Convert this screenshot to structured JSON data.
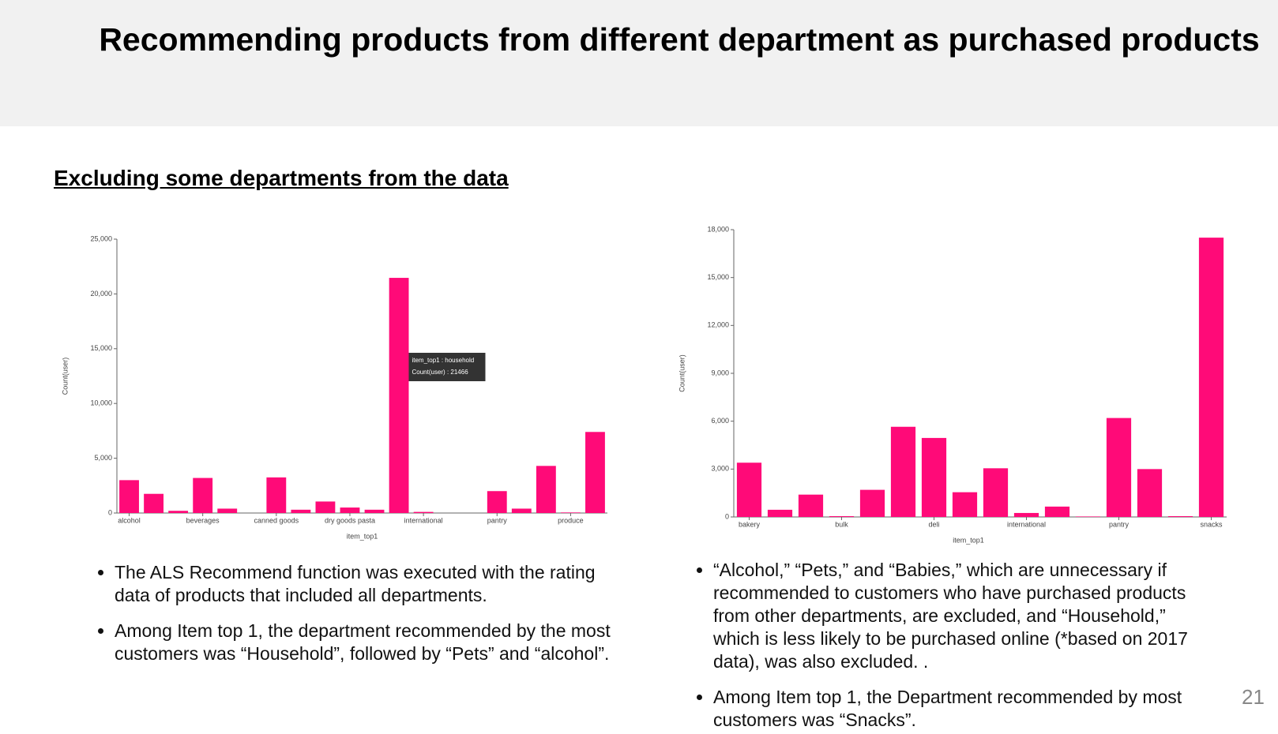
{
  "title": "Recommending products from different department as purchased products",
  "heading": "Excluding some departments from the data",
  "chart_data": [
    {
      "type": "bar",
      "color": "#ff0a78",
      "categories": [
        "alcohol",
        null,
        null,
        "beverages",
        null,
        null,
        "canned goods",
        null,
        null,
        "dry goods pasta",
        null,
        null,
        "international",
        null,
        null,
        "pantry",
        null,
        null,
        "produce",
        null
      ],
      "values": [
        3000,
        1750,
        200,
        3200,
        400,
        0,
        3250,
        300,
        1050,
        500,
        300,
        21466,
        100,
        0,
        0,
        2000,
        400,
        4300,
        50,
        7400
      ],
      "ylim": [
        0,
        25000
      ],
      "yticks": [
        0,
        {
          "value": 5000,
          "label": "5,000"
        },
        {
          "value": 10000,
          "label": "10,000"
        },
        {
          "value": 15000,
          "label": "15,000"
        },
        {
          "value": 20000,
          "label": "20,000"
        },
        {
          "value": 25000,
          "label": "25,000"
        }
      ],
      "x_label": "item_top1",
      "y_label": "Count(user)",
      "tooltip": [
        "item_top1 : household",
        "Count(user) : 21466"
      ]
    },
    {
      "type": "bar",
      "color": "#ff0a78",
      "categories": [
        "bakery",
        null,
        null,
        "bulk",
        null,
        null,
        "deli",
        null,
        null,
        "international",
        null,
        null,
        "pantry",
        null,
        null,
        "snacks"
      ],
      "values": [
        3400,
        450,
        1400,
        50,
        1700,
        5650,
        4950,
        1550,
        3050,
        250,
        650,
        30,
        6200,
        3000,
        50,
        17500
      ],
      "ylim": [
        0,
        18000
      ],
      "yticks": [
        0,
        {
          "value": 3000,
          "label": "3,000"
        },
        {
          "value": 6000,
          "label": "6,000"
        },
        {
          "value": 9000,
          "label": "9,000"
        },
        {
          "value": 12000,
          "label": "12,000"
        },
        {
          "value": 15000,
          "label": "15,000"
        },
        {
          "value": 18000,
          "label": "18,000"
        }
      ],
      "x_label": "item_top1",
      "y_label": "Count(user)"
    }
  ],
  "left_bullets": [
    "The ALS Recommend function was executed with the rating data of products that included all departments.",
    "Among Item top 1, the department recommended by the most customers was “Household”, followed by “Pets” and “alcohol”."
  ],
  "right_bullets": [
    "“Alcohol,” “Pets,” and “Babies,” which are unnecessary if recommended to customers who have purchased products from other departments, are excluded, and “Household,” which is less likely to be purchased online (*based on 2017 data), was also excluded. .",
    "Among Item top 1, the Department recommended by most customers was “Snacks”."
  ],
  "page_number": "21"
}
